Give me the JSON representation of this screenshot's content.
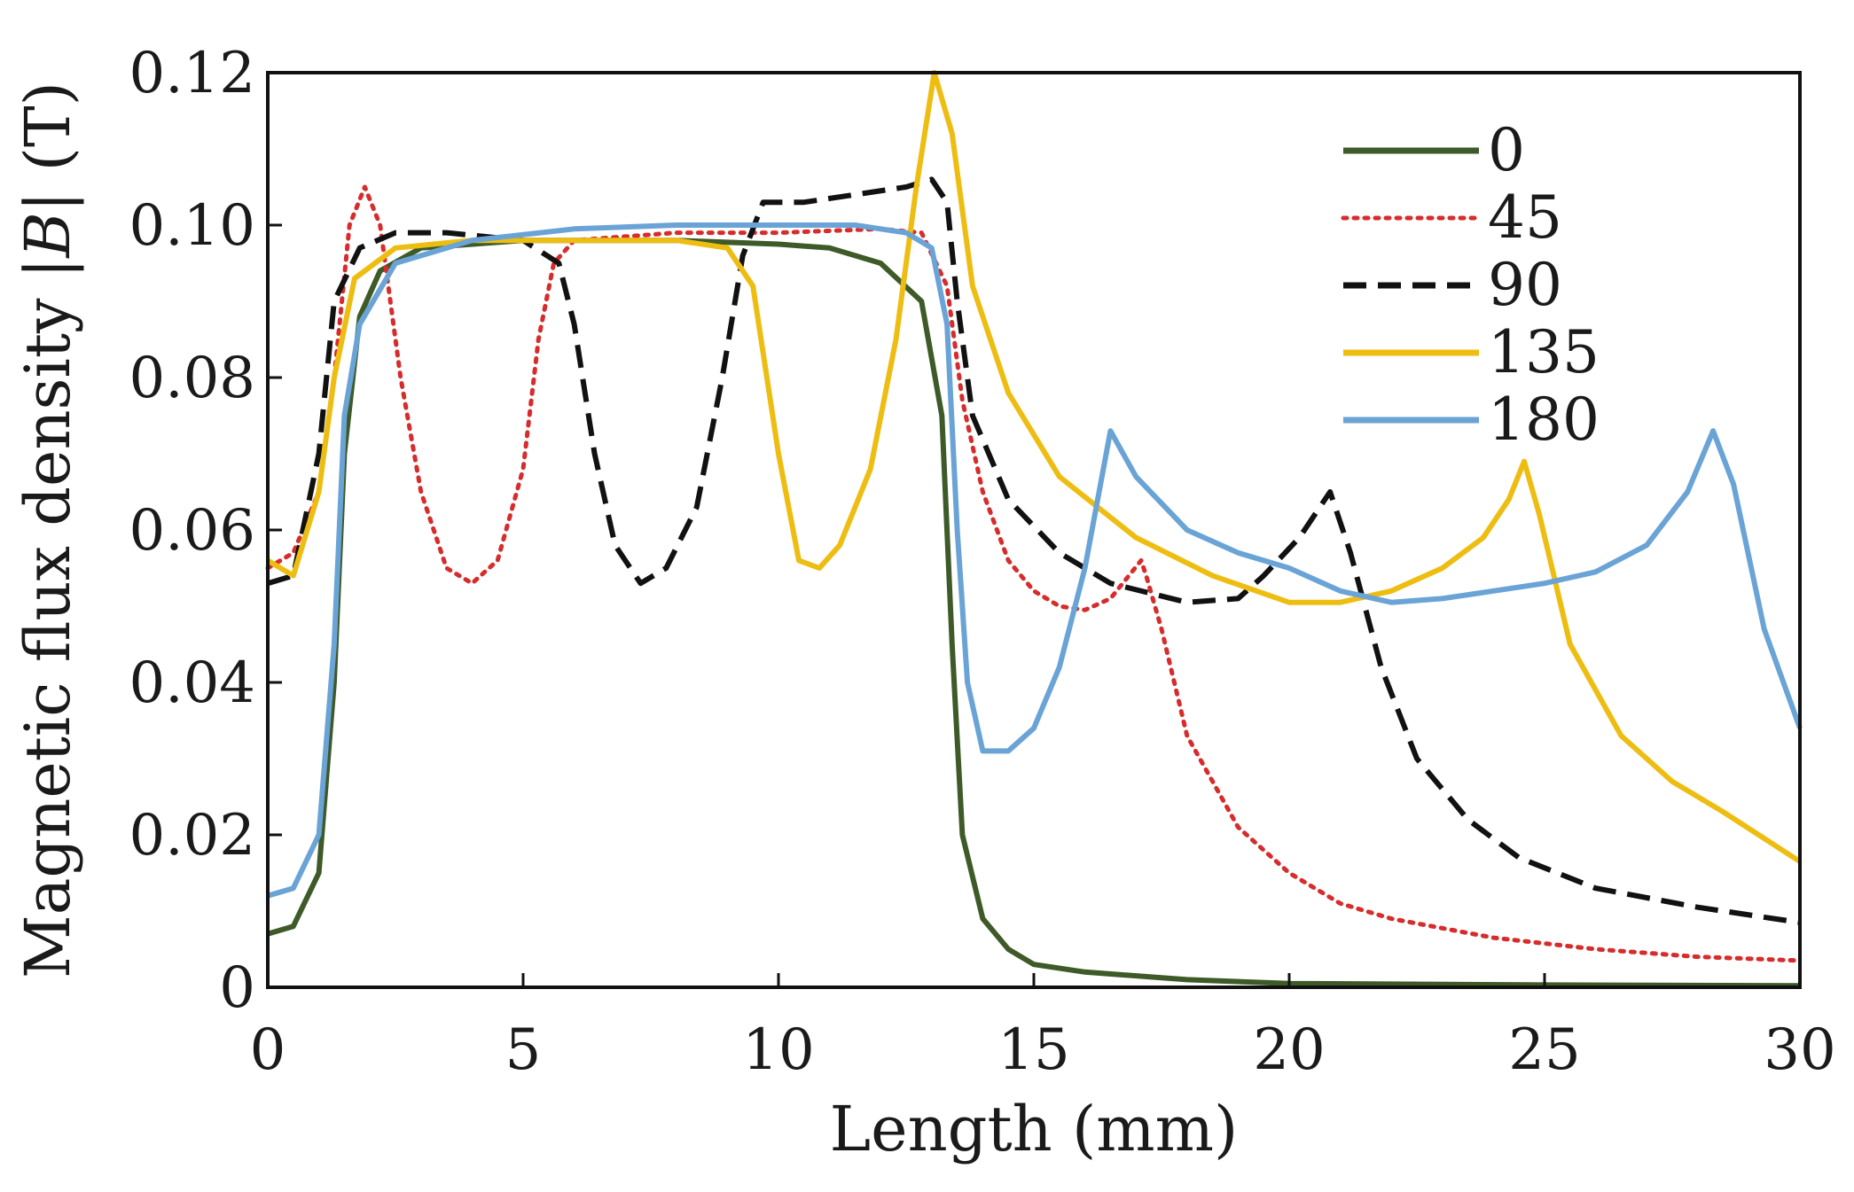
{
  "chart_data": {
    "type": "line",
    "title": "",
    "xlabel": "Length (mm)",
    "ylabel_parts": [
      "Magnetic flux density ",
      "|",
      "B",
      "|",
      " (T)"
    ],
    "xlim": [
      0,
      30
    ],
    "ylim": [
      0,
      0.12
    ],
    "xticks": [
      0,
      5,
      10,
      15,
      20,
      25,
      30
    ],
    "xtick_labels": [
      "0",
      "5",
      "10",
      "15",
      "20",
      "25",
      "30"
    ],
    "yticks": [
      0,
      0.02,
      0.04,
      0.06,
      0.08,
      0.1,
      0.12
    ],
    "ytick_labels": [
      "0",
      "0.02",
      "0.04",
      "0.06",
      "0.08",
      "0.10",
      "0.12"
    ],
    "grid": false,
    "legend_position": "top-right",
    "series": [
      {
        "name": "0",
        "color": "#3d5a28",
        "style": "solid",
        "points": [
          [
            0,
            0.007
          ],
          [
            0.5,
            0.008
          ],
          [
            1,
            0.015
          ],
          [
            1.3,
            0.04
          ],
          [
            1.5,
            0.07
          ],
          [
            1.8,
            0.088
          ],
          [
            2.2,
            0.094
          ],
          [
            3,
            0.097
          ],
          [
            5,
            0.098
          ],
          [
            8,
            0.098
          ],
          [
            10,
            0.0975
          ],
          [
            11,
            0.097
          ],
          [
            12,
            0.095
          ],
          [
            12.8,
            0.09
          ],
          [
            13.2,
            0.075
          ],
          [
            13.4,
            0.045
          ],
          [
            13.6,
            0.02
          ],
          [
            14,
            0.009
          ],
          [
            14.5,
            0.005
          ],
          [
            15,
            0.003
          ],
          [
            16,
            0.002
          ],
          [
            18,
            0.001
          ],
          [
            20,
            0.0005
          ],
          [
            25,
            0.0003
          ],
          [
            30,
            0.0002
          ]
        ]
      },
      {
        "name": "45",
        "color": "#d62c2c",
        "style": "dotted",
        "points": [
          [
            0,
            0.055
          ],
          [
            0.5,
            0.057
          ],
          [
            1,
            0.065
          ],
          [
            1.3,
            0.08
          ],
          [
            1.6,
            0.1
          ],
          [
            1.9,
            0.105
          ],
          [
            2.2,
            0.1
          ],
          [
            2.6,
            0.08
          ],
          [
            3,
            0.065
          ],
          [
            3.5,
            0.055
          ],
          [
            4,
            0.053
          ],
          [
            4.5,
            0.056
          ],
          [
            5,
            0.068
          ],
          [
            5.3,
            0.085
          ],
          [
            5.6,
            0.095
          ],
          [
            6,
            0.098
          ],
          [
            8,
            0.099
          ],
          [
            10,
            0.099
          ],
          [
            12,
            0.0995
          ],
          [
            12.8,
            0.099
          ],
          [
            13.3,
            0.092
          ],
          [
            13.6,
            0.077
          ],
          [
            14,
            0.065
          ],
          [
            14.5,
            0.056
          ],
          [
            15,
            0.052
          ],
          [
            15.5,
            0.05
          ],
          [
            16,
            0.0495
          ],
          [
            16.5,
            0.051
          ],
          [
            17.1,
            0.056
          ],
          [
            17.2,
            0.054
          ],
          [
            17.5,
            0.047
          ],
          [
            18,
            0.033
          ],
          [
            19,
            0.021
          ],
          [
            20,
            0.015
          ],
          [
            21,
            0.011
          ],
          [
            22,
            0.009
          ],
          [
            24,
            0.0065
          ],
          [
            26,
            0.005
          ],
          [
            28,
            0.004
          ],
          [
            30,
            0.0035
          ]
        ]
      },
      {
        "name": "90",
        "color": "#111111",
        "style": "dashed",
        "points": [
          [
            0,
            0.053
          ],
          [
            0.5,
            0.054
          ],
          [
            1,
            0.07
          ],
          [
            1.3,
            0.09
          ],
          [
            1.8,
            0.097
          ],
          [
            2.5,
            0.099
          ],
          [
            3.5,
            0.099
          ],
          [
            5,
            0.098
          ],
          [
            5.7,
            0.095
          ],
          [
            6,
            0.087
          ],
          [
            6.4,
            0.07
          ],
          [
            6.8,
            0.058
          ],
          [
            7.3,
            0.053
          ],
          [
            7.8,
            0.055
          ],
          [
            8.4,
            0.063
          ],
          [
            8.9,
            0.08
          ],
          [
            9.3,
            0.096
          ],
          [
            9.7,
            0.103
          ],
          [
            10.5,
            0.103
          ],
          [
            11.5,
            0.104
          ],
          [
            12.5,
            0.105
          ],
          [
            13,
            0.106
          ],
          [
            13.3,
            0.103
          ],
          [
            13.5,
            0.09
          ],
          [
            13.8,
            0.075
          ],
          [
            14.5,
            0.064
          ],
          [
            15.5,
            0.057
          ],
          [
            16.5,
            0.053
          ],
          [
            18,
            0.0505
          ],
          [
            19,
            0.051
          ],
          [
            19.5,
            0.054
          ],
          [
            20.2,
            0.059
          ],
          [
            20.8,
            0.065
          ],
          [
            21.2,
            0.057
          ],
          [
            21.8,
            0.042
          ],
          [
            22.5,
            0.03
          ],
          [
            23.5,
            0.022
          ],
          [
            24.5,
            0.017
          ],
          [
            26,
            0.013
          ],
          [
            28,
            0.0105
          ],
          [
            30,
            0.0085
          ]
        ]
      },
      {
        "name": "135",
        "color": "#eebd12",
        "style": "solid",
        "points": [
          [
            0,
            0.056
          ],
          [
            0.5,
            0.054
          ],
          [
            1,
            0.065
          ],
          [
            1.3,
            0.08
          ],
          [
            1.7,
            0.093
          ],
          [
            2.5,
            0.097
          ],
          [
            4,
            0.098
          ],
          [
            6,
            0.098
          ],
          [
            8,
            0.098
          ],
          [
            9,
            0.097
          ],
          [
            9.5,
            0.092
          ],
          [
            10,
            0.07
          ],
          [
            10.4,
            0.056
          ],
          [
            10.8,
            0.055
          ],
          [
            11.2,
            0.058
          ],
          [
            11.8,
            0.068
          ],
          [
            12.3,
            0.085
          ],
          [
            12.7,
            0.105
          ],
          [
            13.05,
            0.12
          ],
          [
            13.4,
            0.112
          ],
          [
            13.8,
            0.092
          ],
          [
            14.5,
            0.078
          ],
          [
            15.5,
            0.067
          ],
          [
            17,
            0.059
          ],
          [
            18.5,
            0.054
          ],
          [
            20,
            0.0505
          ],
          [
            21,
            0.0505
          ],
          [
            22,
            0.052
          ],
          [
            23,
            0.055
          ],
          [
            23.8,
            0.059
          ],
          [
            24.3,
            0.064
          ],
          [
            24.6,
            0.069
          ],
          [
            24.9,
            0.062
          ],
          [
            25.5,
            0.045
          ],
          [
            26.5,
            0.033
          ],
          [
            27.5,
            0.027
          ],
          [
            28.5,
            0.023
          ],
          [
            30,
            0.0165
          ]
        ]
      },
      {
        "name": "180",
        "color": "#6aa3d6",
        "style": "solid",
        "points": [
          [
            0,
            0.012
          ],
          [
            0.5,
            0.013
          ],
          [
            1,
            0.02
          ],
          [
            1.3,
            0.045
          ],
          [
            1.5,
            0.075
          ],
          [
            1.8,
            0.087
          ],
          [
            2.5,
            0.095
          ],
          [
            4,
            0.098
          ],
          [
            6,
            0.0995
          ],
          [
            8,
            0.1
          ],
          [
            10,
            0.1
          ],
          [
            11.5,
            0.1
          ],
          [
            12.5,
            0.099
          ],
          [
            13,
            0.097
          ],
          [
            13.3,
            0.087
          ],
          [
            13.5,
            0.06
          ],
          [
            13.7,
            0.04
          ],
          [
            14,
            0.031
          ],
          [
            14.5,
            0.031
          ],
          [
            15,
            0.034
          ],
          [
            15.5,
            0.042
          ],
          [
            16,
            0.055
          ],
          [
            16.5,
            0.073
          ],
          [
            17,
            0.067
          ],
          [
            18,
            0.06
          ],
          [
            19,
            0.057
          ],
          [
            20,
            0.055
          ],
          [
            21,
            0.052
          ],
          [
            22,
            0.0505
          ],
          [
            23,
            0.051
          ],
          [
            24,
            0.052
          ],
          [
            25,
            0.053
          ],
          [
            26,
            0.0545
          ],
          [
            27,
            0.058
          ],
          [
            27.8,
            0.065
          ],
          [
            28.3,
            0.073
          ],
          [
            28.7,
            0.066
          ],
          [
            29.3,
            0.047
          ],
          [
            30,
            0.034
          ]
        ]
      }
    ]
  }
}
